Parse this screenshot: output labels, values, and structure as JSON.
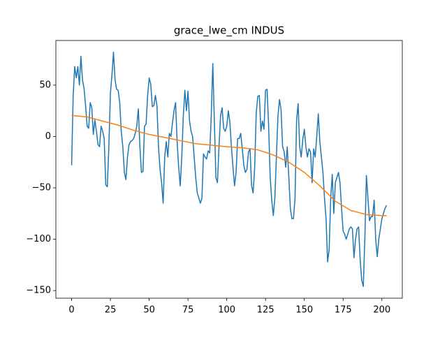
{
  "chart_data": {
    "type": "line",
    "title": "grace_lwe_cm INDUS",
    "xlim": [
      -10.15,
      213.15
    ],
    "xticks": [
      0,
      25,
      50,
      75,
      100,
      125,
      150,
      175,
      200
    ],
    "ylim": [
      -157.4,
      93.4
    ],
    "yticks": [
      {
        "value": -150,
        "label": "−150"
      },
      {
        "value": -100,
        "label": "−100"
      },
      {
        "value": -50,
        "label": "−50"
      },
      0,
      50
    ],
    "series": [
      {
        "color": "#1f77b4",
        "x": [
          0,
          1,
          2,
          3,
          4,
          5,
          6,
          7,
          8,
          9,
          10,
          11,
          12,
          13,
          14,
          15,
          16,
          17,
          18,
          19,
          20,
          21,
          22,
          23,
          24,
          25,
          26,
          27,
          28,
          29,
          30,
          31,
          32,
          33,
          34,
          35,
          36,
          37,
          38,
          39,
          40,
          41,
          42,
          43,
          44,
          45,
          46,
          47,
          48,
          49,
          50,
          51,
          52,
          53,
          54,
          55,
          56,
          57,
          58,
          59,
          60,
          61,
          62,
          63,
          64,
          65,
          66,
          67,
          68,
          69,
          70,
          71,
          72,
          73,
          74,
          75,
          76,
          77,
          78,
          79,
          80,
          81,
          82,
          83,
          84,
          85,
          86,
          87,
          88,
          89,
          90,
          91,
          92,
          93,
          94,
          95,
          96,
          97,
          98,
          99,
          100,
          101,
          102,
          103,
          104,
          105,
          106,
          107,
          108,
          109,
          110,
          111,
          112,
          113,
          114,
          115,
          116,
          117,
          118,
          119,
          120,
          121,
          122,
          123,
          124,
          125,
          126,
          127,
          128,
          129,
          130,
          131,
          132,
          133,
          134,
          135,
          136,
          137,
          138,
          139,
          140,
          141,
          142,
          143,
          144,
          145,
          146,
          147,
          148,
          149,
          150,
          151,
          152,
          153,
          154,
          155,
          156,
          157,
          158,
          159,
          160,
          161,
          162,
          163,
          164,
          165,
          166,
          167,
          168,
          169,
          170,
          171,
          172,
          173,
          174,
          175,
          176,
          177,
          178,
          179,
          180,
          181,
          182,
          183,
          184,
          185,
          186,
          187,
          188,
          189,
          190,
          191,
          192,
          193,
          194,
          195,
          196,
          197,
          198,
          199,
          200,
          201,
          202,
          203
        ],
        "values": [
          -28,
          40,
          68,
          57,
          68,
          50,
          78,
          55,
          47,
          30,
          10,
          8,
          33,
          28,
          2,
          16,
          5,
          -8,
          -10,
          10,
          5,
          -2,
          -47,
          -49,
          -10,
          42,
          60,
          82,
          55,
          46,
          45,
          33,
          5,
          -10,
          -35,
          -42,
          -20,
          -8,
          -5,
          -4,
          -2,
          3,
          10,
          27,
          -10,
          -35,
          -34,
          10,
          12,
          40,
          57,
          51,
          29,
          30,
          40,
          30,
          -10,
          -32,
          -45,
          -65,
          -20,
          -5,
          -20,
          3,
          0,
          13,
          25,
          33,
          -5,
          -30,
          -48,
          -20,
          20,
          45,
          25,
          44,
          15,
          5,
          0,
          -20,
          -40,
          -55,
          -60,
          -65,
          -60,
          -17,
          -20,
          -22,
          -14,
          -16,
          20,
          71,
          15,
          -40,
          -45,
          -10,
          20,
          28,
          8,
          5,
          10,
          25,
          14,
          -10,
          -30,
          -48,
          -35,
          -2,
          -2,
          3,
          -12,
          -28,
          -35,
          -32,
          -15,
          -12,
          -48,
          -55,
          -30,
          23,
          39,
          40,
          5,
          15,
          7,
          45,
          46,
          10,
          -40,
          -62,
          -77,
          -60,
          -20,
          20,
          36,
          26,
          -10,
          -15,
          -30,
          -10,
          -40,
          -70,
          -80,
          -80,
          -60,
          15,
          32,
          -10,
          -20,
          -3,
          7,
          -10,
          -20,
          -12,
          -15,
          -45,
          -12,
          -20,
          0,
          22,
          -5,
          -20,
          -35,
          -60,
          -80,
          -122,
          -110,
          -60,
          -37,
          -75,
          -45,
          -40,
          -35,
          -45,
          -70,
          -92,
          -95,
          -100,
          -95,
          -90,
          -88,
          -90,
          -118,
          -100,
          -90,
          -88,
          -120,
          -140,
          -146,
          -100,
          -38,
          -60,
          -82,
          -78,
          -78,
          -62,
          -100,
          -117,
          -100,
          -90,
          -80,
          -75,
          -70,
          -67
        ]
      },
      {
        "color": "#ff7f0e",
        "x": [
          0,
          10,
          20,
          30,
          40,
          50,
          60,
          70,
          80,
          90,
          100,
          110,
          120,
          130,
          140,
          150,
          160,
          170,
          180,
          190,
          200,
          203
        ],
        "values": [
          20.5,
          19,
          15,
          11,
          6,
          2,
          -1,
          -4,
          -7,
          -8.5,
          -10,
          -11,
          -13,
          -18,
          -25,
          -35,
          -48,
          -63,
          -72,
          -76,
          -77,
          -77
        ]
      }
    ]
  }
}
